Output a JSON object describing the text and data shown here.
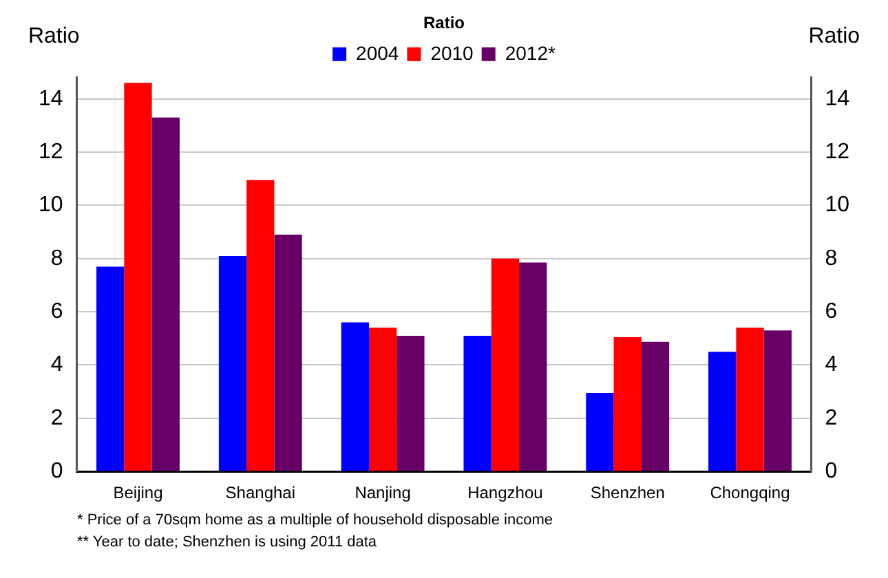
{
  "chart_data": {
    "type": "bar",
    "title": "Ratio",
    "ylabel": "Ratio",
    "y2label": "Ratio",
    "categories": [
      "Beijing",
      "Shanghai",
      "Nanjing",
      "Hangzhou",
      "Shenzhen",
      "Chongqing"
    ],
    "series": [
      {
        "name": "2004",
        "color": "#0000ff",
        "values": [
          7.7,
          8.1,
          5.6,
          5.1,
          2.95,
          4.5
        ]
      },
      {
        "name": "2010",
        "color": "#ff0000",
        "values": [
          14.6,
          10.95,
          5.4,
          8.0,
          5.05,
          5.4
        ]
      },
      {
        "name": "2012*",
        "color": "#660066",
        "values": [
          13.3,
          8.9,
          5.1,
          7.85,
          4.87,
          5.3
        ]
      }
    ],
    "ylim": [
      0,
      14.8
    ],
    "yticks": [
      0,
      2,
      4,
      6,
      8,
      10,
      12,
      14
    ],
    "y2lim": [
      0,
      14.8
    ],
    "y2ticks": [
      0,
      2,
      4,
      6,
      8,
      10,
      12,
      14
    ],
    "grid": "y",
    "legend": "top",
    "annotations": [
      "* Price of a 70sqm home as a multiple of household disposable income",
      "** Year to date; Shenzhen is using 2011 data"
    ]
  }
}
